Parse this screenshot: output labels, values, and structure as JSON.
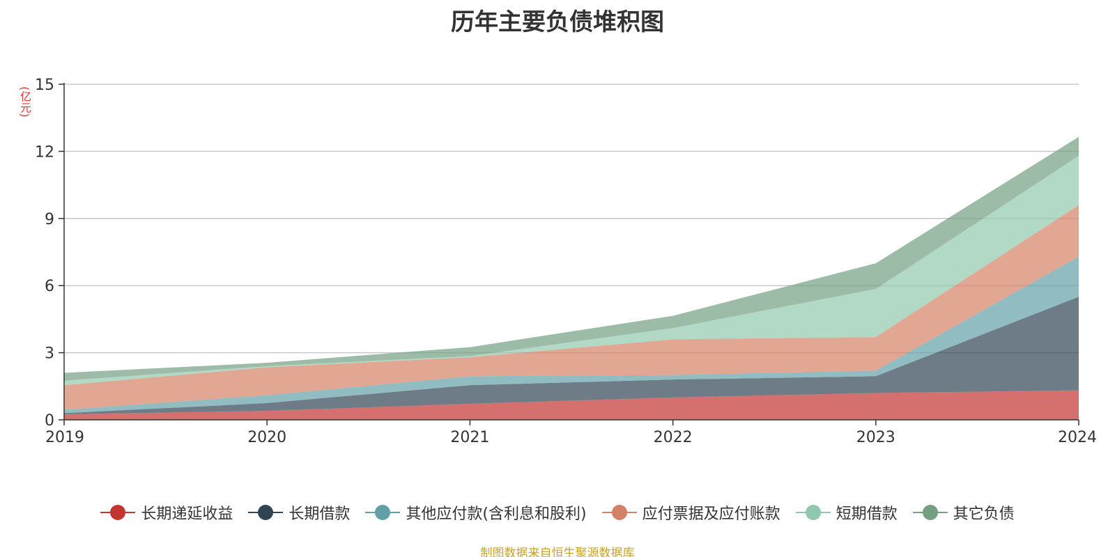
{
  "chart_data": {
    "type": "area",
    "stacked": true,
    "title": "历年主要负债堆积图",
    "unit_label": "(亿元)",
    "x": [
      "2019",
      "2020",
      "2021",
      "2022",
      "2023",
      "2024"
    ],
    "ylim": [
      0,
      15
    ],
    "yticks": [
      0,
      3,
      6,
      9,
      12,
      15
    ],
    "grid": true,
    "legend_position": "bottom",
    "series": [
      {
        "name": "长期递延收益",
        "values": [
          0.25,
          0.4,
          0.72,
          1.0,
          1.2,
          1.32
        ],
        "color": "#c23531"
      },
      {
        "name": "长期借款",
        "values": [
          0.05,
          0.35,
          0.83,
          0.8,
          0.75,
          4.18
        ],
        "color": "#2f4554"
      },
      {
        "name": "其他应付款(含利息和股利)",
        "values": [
          0.15,
          0.35,
          0.4,
          0.2,
          0.25,
          1.8
        ],
        "color": "#61a0a8"
      },
      {
        "name": "应付票据及应付账款",
        "values": [
          1.1,
          1.25,
          0.85,
          1.6,
          1.5,
          2.3
        ],
        "color": "#d48265"
      },
      {
        "name": "短期借款",
        "values": [
          0.2,
          0.05,
          0.05,
          0.5,
          2.15,
          2.2
        ],
        "color": "#91c7ae"
      },
      {
        "name": "其它负债",
        "values": [
          0.35,
          0.15,
          0.4,
          0.55,
          1.15,
          0.85
        ],
        "color": "#749f83"
      }
    ]
  },
  "source_text": "制图数据来自恒生聚源数据库"
}
